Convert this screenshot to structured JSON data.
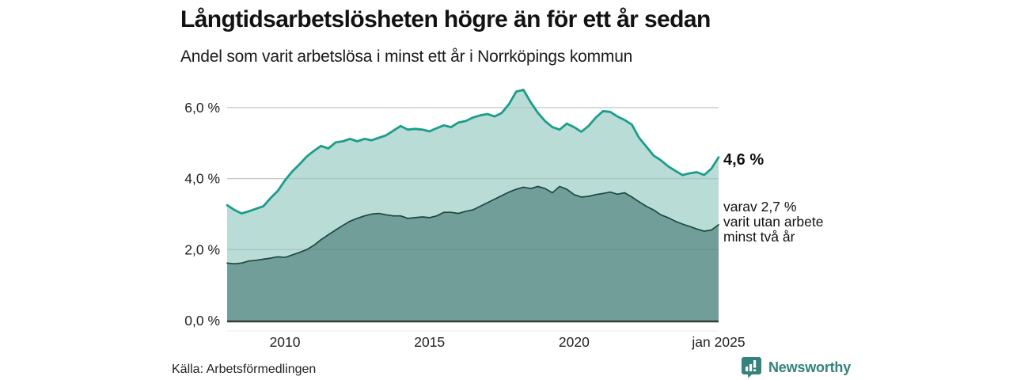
{
  "title": "Långtidsarbetslösheten högre än för ett år sedan",
  "subtitle": "Andel som varit arbetslösa i minst ett år i Norrköpings kommun",
  "source": "Källa: Arbetsförmedlingen",
  "brand": {
    "name": "Newsworthy",
    "color": "#35817b"
  },
  "annotations": {
    "total_label": "4,6 %",
    "subset_line1": "varav 2,7 %",
    "subset_line2": "varit utan arbete",
    "subset_line3": "minst två år"
  },
  "colors": {
    "background": "#ffffff",
    "series_total_line": "#1b9d8b",
    "series_total_fill": "#b9dcd6",
    "series_subset_line": "#1e4742",
    "series_subset_fill": "#719e98",
    "gridline": "#d9d9d9",
    "gridline_overlay": "rgba(60,80,78,0.14)",
    "axis_line": "#3a3a3a",
    "axis_subline": "#ececec",
    "tick_text": "#222222"
  },
  "chart_data": {
    "type": "area",
    "title": "Långtidsarbetslösheten högre än för ett år sedan",
    "subtitle": "Andel som varit arbetslösa i minst ett år i Norrköpings kommun",
    "unit": "%",
    "xlim": [
      2008,
      2025
    ],
    "ylim": [
      0,
      6.8
    ],
    "grid": "horizontal",
    "legend_position": "right-annotations",
    "x_ticks": [
      {
        "value": 2010,
        "label": "2010"
      },
      {
        "value": 2015,
        "label": "2015"
      },
      {
        "value": 2020,
        "label": "2020"
      },
      {
        "value": 2025,
        "label": "jan 2025"
      }
    ],
    "y_ticks": [
      {
        "value": 0,
        "label": "0,0 %"
      },
      {
        "value": 2,
        "label": "2,0 %"
      },
      {
        "value": 4,
        "label": "4,0 %"
      },
      {
        "value": 6,
        "label": "6,0 %"
      }
    ],
    "gridline_values": [
      2,
      4,
      6
    ],
    "x": [
      2008,
      2008.25,
      2008.5,
      2008.75,
      2009,
      2009.25,
      2009.5,
      2009.75,
      2010,
      2010.25,
      2010.5,
      2010.75,
      2011,
      2011.25,
      2011.5,
      2011.75,
      2012,
      2012.25,
      2012.5,
      2012.75,
      2013,
      2013.25,
      2013.5,
      2013.75,
      2014,
      2014.25,
      2014.5,
      2014.75,
      2015,
      2015.25,
      2015.5,
      2015.75,
      2016,
      2016.25,
      2016.5,
      2016.75,
      2017,
      2017.25,
      2017.5,
      2017.75,
      2018,
      2018.25,
      2018.5,
      2018.75,
      2019,
      2019.25,
      2019.5,
      2019.75,
      2020,
      2020.25,
      2020.5,
      2020.75,
      2021,
      2021.25,
      2021.5,
      2021.75,
      2022,
      2022.25,
      2022.5,
      2022.75,
      2023,
      2023.25,
      2023.5,
      2023.75,
      2024,
      2024.25,
      2024.5,
      2024.75,
      2025
    ],
    "series": [
      {
        "name": "Andel arbetslösa minst ett år",
        "latest_value": 4.6,
        "latest_label": "4,6 %",
        "values": [
          3.25,
          3.12,
          3.02,
          3.08,
          3.15,
          3.22,
          3.45,
          3.65,
          3.95,
          4.2,
          4.4,
          4.62,
          4.78,
          4.92,
          4.85,
          5.02,
          5.05,
          5.12,
          5.05,
          5.12,
          5.08,
          5.15,
          5.22,
          5.35,
          5.48,
          5.38,
          5.4,
          5.38,
          5.33,
          5.42,
          5.5,
          5.45,
          5.58,
          5.62,
          5.72,
          5.78,
          5.82,
          5.75,
          5.85,
          6.1,
          6.45,
          6.5,
          6.15,
          5.85,
          5.62,
          5.45,
          5.38,
          5.55,
          5.45,
          5.32,
          5.48,
          5.72,
          5.9,
          5.88,
          5.75,
          5.65,
          5.52,
          5.15,
          4.9,
          4.65,
          4.52,
          4.35,
          4.22,
          4.1,
          4.15,
          4.18,
          4.1,
          4.28,
          4.6
        ]
      },
      {
        "name": "Varav utan arbete minst två år",
        "latest_value": 2.7,
        "latest_label": "varav 2,7 % varit utan arbete minst två år",
        "values": [
          1.62,
          1.6,
          1.62,
          1.68,
          1.7,
          1.73,
          1.76,
          1.8,
          1.78,
          1.85,
          1.92,
          2.0,
          2.12,
          2.28,
          2.42,
          2.55,
          2.68,
          2.8,
          2.88,
          2.95,
          3.0,
          3.02,
          2.98,
          2.95,
          2.95,
          2.88,
          2.9,
          2.92,
          2.9,
          2.95,
          3.05,
          3.05,
          3.02,
          3.08,
          3.12,
          3.22,
          3.32,
          3.42,
          3.52,
          3.62,
          3.7,
          3.76,
          3.72,
          3.78,
          3.72,
          3.6,
          3.78,
          3.7,
          3.55,
          3.48,
          3.5,
          3.55,
          3.58,
          3.62,
          3.56,
          3.6,
          3.48,
          3.35,
          3.22,
          3.12,
          2.98,
          2.9,
          2.8,
          2.72,
          2.65,
          2.58,
          2.52,
          2.55,
          2.7
        ]
      }
    ]
  }
}
